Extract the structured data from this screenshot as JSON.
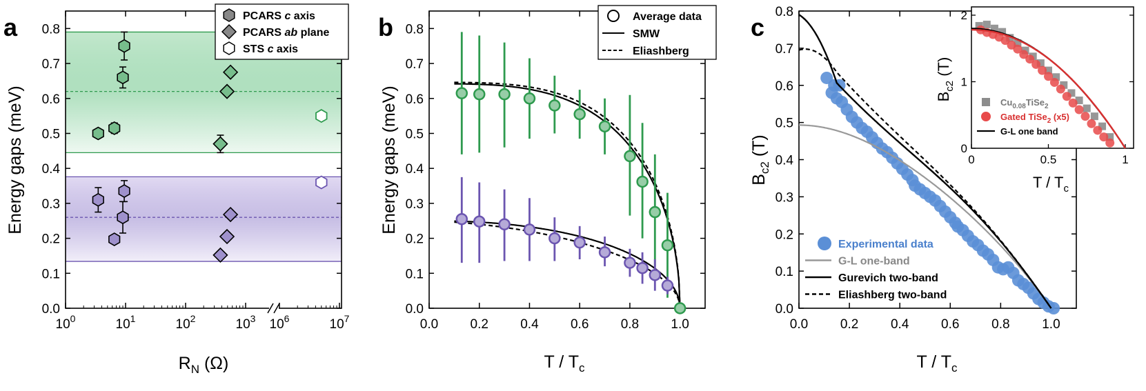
{
  "chart_data": [
    {
      "panel": "a",
      "type": "scatter",
      "xlabel_main": "R",
      "xlabel_sub": "N",
      "xlabel_unit": "(Ω)",
      "ylabel": "Energy gaps (meV)",
      "xscale": "log with axis break",
      "xticks": [
        "10",
        "10",
        "10",
        "10",
        "10",
        "10"
      ],
      "xtick_exponents": [
        "0",
        "1",
        "2",
        "3",
        "6",
        "7"
      ],
      "ylim": [
        0.0,
        0.85
      ],
      "yticks": [
        "0.0",
        "0.1",
        "0.2",
        "0.3",
        "0.4",
        "0.5",
        "0.6",
        "0.7",
        "0.8"
      ],
      "legend": [
        {
          "marker": "hexagon-filled",
          "text_parts": [
            "PCARS ",
            "c",
            " axis"
          ]
        },
        {
          "marker": "diamond-filled",
          "text_parts": [
            "PCARS ",
            "ab",
            " plane"
          ]
        },
        {
          "marker": "hexagon-open",
          "text_parts": [
            "STS ",
            "c",
            " axis"
          ]
        }
      ],
      "bands": [
        {
          "name": "green",
          "lower": 0.445,
          "upper": 0.79,
          "mean": 0.62,
          "color": "#2e9a4e"
        },
        {
          "name": "purple",
          "lower": 0.134,
          "upper": 0.376,
          "mean": 0.26,
          "color": "#6b55b0"
        }
      ],
      "series": [
        {
          "group": "green",
          "method": "PCARS c axis",
          "points": [
            {
              "x": 3.5,
              "y": 0.5,
              "err": 0.0
            },
            {
              "x": 6.5,
              "y": 0.515,
              "err": 0.015
            },
            {
              "x": 9.0,
              "y": 0.66,
              "err": 0.03
            },
            {
              "x": 9.5,
              "y": 0.75,
              "err": 0.04
            }
          ]
        },
        {
          "group": "green",
          "method": "PCARS ab plane",
          "points": [
            {
              "x": 380,
              "y": 0.47,
              "err": 0.025
            },
            {
              "x": 490,
              "y": 0.62,
              "err": 0.0
            },
            {
              "x": 560,
              "y": 0.675,
              "err": 0.0
            }
          ]
        },
        {
          "group": "green",
          "method": "STS c axis",
          "points": [
            {
              "x": 5000000,
              "y": 0.55,
              "err": 0.0
            }
          ]
        },
        {
          "group": "purple",
          "method": "PCARS c axis",
          "points": [
            {
              "x": 3.5,
              "y": 0.31,
              "err": 0.035
            },
            {
              "x": 6.5,
              "y": 0.197,
              "err": 0.0
            },
            {
              "x": 9.0,
              "y": 0.26,
              "err": 0.045
            },
            {
              "x": 9.5,
              "y": 0.335,
              "err": 0.03
            }
          ]
        },
        {
          "group": "purple",
          "method": "PCARS ab plane",
          "points": [
            {
              "x": 380,
              "y": 0.152,
              "err": 0.0
            },
            {
              "x": 490,
              "y": 0.205,
              "err": 0.0
            },
            {
              "x": 560,
              "y": 0.268,
              "err": 0.0
            }
          ]
        },
        {
          "group": "purple",
          "method": "STS c axis",
          "points": [
            {
              "x": 5000000,
              "y": 0.36,
              "err": 0.0
            }
          ]
        }
      ]
    },
    {
      "panel": "b",
      "type": "scatter",
      "xlabel": "T / T",
      "xlabel_sub": "c",
      "ylabel": "Energy gaps (meV)",
      "xlim": [
        0.0,
        1.1
      ],
      "ylim": [
        0.0,
        0.85
      ],
      "xticks": [
        "0.0",
        "0.2",
        "0.4",
        "0.6",
        "0.8",
        "1.0"
      ],
      "yticks": [
        "0.0",
        "0.1",
        "0.2",
        "0.3",
        "0.4",
        "0.5",
        "0.6",
        "0.7",
        "0.8"
      ],
      "legend": [
        {
          "marker": "circle-open",
          "text": "Average data"
        },
        {
          "marker": "line-solid",
          "text": "SMW"
        },
        {
          "marker": "line-dashed",
          "text": "Eliashberg"
        }
      ],
      "series": [
        {
          "name": "green data",
          "color": "#2e9a4e",
          "points": [
            {
              "x": 0.13,
              "y": 0.615,
              "lo": 0.44,
              "hi": 0.79
            },
            {
              "x": 0.2,
              "y": 0.612,
              "lo": 0.445,
              "hi": 0.78
            },
            {
              "x": 0.3,
              "y": 0.612,
              "lo": 0.46,
              "hi": 0.76
            },
            {
              "x": 0.4,
              "y": 0.6,
              "lo": 0.485,
              "hi": 0.715
            },
            {
              "x": 0.5,
              "y": 0.58,
              "lo": 0.5,
              "hi": 0.665
            },
            {
              "x": 0.6,
              "y": 0.555,
              "lo": 0.485,
              "hi": 0.625
            },
            {
              "x": 0.7,
              "y": 0.52,
              "lo": 0.44,
              "hi": 0.6
            },
            {
              "x": 0.8,
              "y": 0.435,
              "lo": 0.265,
              "hi": 0.61
            },
            {
              "x": 0.85,
              "y": 0.362,
              "lo": 0.2,
              "hi": 0.53
            },
            {
              "x": 0.9,
              "y": 0.275,
              "lo": 0.12,
              "hi": 0.44
            },
            {
              "x": 0.95,
              "y": 0.18,
              "lo": 0.03,
              "hi": 0.33
            },
            {
              "x": 1.0,
              "y": 0.0,
              "lo": 0.0,
              "hi": 0.0
            }
          ]
        },
        {
          "name": "purple data",
          "color": "#6b55b0",
          "points": [
            {
              "x": 0.13,
              "y": 0.255,
              "lo": 0.13,
              "hi": 0.375
            },
            {
              "x": 0.2,
              "y": 0.248,
              "lo": 0.13,
              "hi": 0.36
            },
            {
              "x": 0.3,
              "y": 0.24,
              "lo": 0.135,
              "hi": 0.34
            },
            {
              "x": 0.4,
              "y": 0.225,
              "lo": 0.135,
              "hi": 0.315
            },
            {
              "x": 0.5,
              "y": 0.2,
              "lo": 0.135,
              "hi": 0.26
            },
            {
              "x": 0.6,
              "y": 0.188,
              "lo": 0.14,
              "hi": 0.235
            },
            {
              "x": 0.7,
              "y": 0.16,
              "lo": 0.12,
              "hi": 0.205
            },
            {
              "x": 0.8,
              "y": 0.13,
              "lo": 0.09,
              "hi": 0.17
            },
            {
              "x": 0.85,
              "y": 0.115,
              "lo": 0.07,
              "hi": 0.16
            },
            {
              "x": 0.9,
              "y": 0.095,
              "lo": 0.05,
              "hi": 0.14
            },
            {
              "x": 0.95,
              "y": 0.065,
              "lo": 0.04,
              "hi": 0.09
            }
          ]
        }
      ]
    },
    {
      "panel": "c",
      "type": "scatter",
      "xlabel": "T / T",
      "xlabel_sub": "c",
      "ylabel": "B",
      "ylabel_sub": "c2",
      "ylabel_unit": "(T)",
      "xlim": [
        0.0,
        1.1
      ],
      "ylim": [
        0.0,
        0.8
      ],
      "xticks": [
        "0.0",
        "0.2",
        "0.4",
        "0.6",
        "0.8",
        "1.0"
      ],
      "yticks": [
        "0.0",
        "0.1",
        "0.2",
        "0.3",
        "0.4",
        "0.5",
        "0.6",
        "0.7",
        "0.8"
      ],
      "legend": [
        {
          "marker": "circle-filled",
          "text": "Experimental data",
          "color": "#5b8fd6"
        },
        {
          "marker": "line-gray",
          "text": "G-L one-band",
          "color": "#999999"
        },
        {
          "marker": "line-solid",
          "text": "Gurevich two-band",
          "color": "#000000"
        },
        {
          "marker": "line-dashed",
          "text": "Eliashberg two-band",
          "color": "#000000"
        }
      ],
      "series": [
        {
          "name": "Experimental data",
          "points": [
            [
              0.11,
              0.62
            ],
            [
              0.14,
              0.6
            ],
            [
              0.16,
              0.6
            ],
            [
              0.13,
              0.58
            ],
            [
              0.15,
              0.565
            ],
            [
              0.17,
              0.555
            ],
            [
              0.19,
              0.535
            ],
            [
              0.21,
              0.515
            ],
            [
              0.23,
              0.5
            ],
            [
              0.25,
              0.485
            ],
            [
              0.27,
              0.475
            ],
            [
              0.29,
              0.46
            ],
            [
              0.31,
              0.445
            ],
            [
              0.33,
              0.43
            ],
            [
              0.35,
              0.42
            ],
            [
              0.37,
              0.405
            ],
            [
              0.39,
              0.39
            ],
            [
              0.41,
              0.375
            ],
            [
              0.43,
              0.36
            ],
            [
              0.45,
              0.345
            ],
            [
              0.46,
              0.33
            ],
            [
              0.48,
              0.32
            ],
            [
              0.5,
              0.31
            ],
            [
              0.52,
              0.3
            ],
            [
              0.54,
              0.29
            ],
            [
              0.56,
              0.275
            ],
            [
              0.58,
              0.26
            ],
            [
              0.6,
              0.245
            ],
            [
              0.62,
              0.23
            ],
            [
              0.63,
              0.22
            ],
            [
              0.65,
              0.21
            ],
            [
              0.67,
              0.195
            ],
            [
              0.69,
              0.18
            ],
            [
              0.71,
              0.17
            ],
            [
              0.73,
              0.155
            ],
            [
              0.75,
              0.145
            ],
            [
              0.77,
              0.13
            ],
            [
              0.79,
              0.11
            ],
            [
              0.81,
              0.105
            ],
            [
              0.83,
              0.11
            ],
            [
              0.85,
              0.095
            ],
            [
              0.87,
              0.075
            ],
            [
              0.89,
              0.065
            ],
            [
              0.91,
              0.055
            ],
            [
              0.93,
              0.04
            ],
            [
              0.95,
              0.025
            ],
            [
              0.97,
              0.015
            ],
            [
              0.99,
              0.005
            ],
            [
              1.01,
              0.0
            ]
          ]
        }
      ],
      "inset": {
        "type": "scatter",
        "xlabel": "T / T",
        "xlabel_sub": "c",
        "ylabel": "B",
        "ylabel_sub": "c2",
        "ylabel_unit": "(T)",
        "xlim": [
          0.0,
          1.0
        ],
        "ylim": [
          0.0,
          2.0
        ],
        "xticks": [
          "0",
          "0.5",
          "1"
        ],
        "yticks": [
          "0",
          "1",
          "2"
        ],
        "legend": [
          {
            "marker": "square-gray",
            "text": "Cu",
            "sub": "0.08",
            "text2": "TiSe",
            "sub2": "2",
            "text3": "",
            "color": "#888888"
          },
          {
            "marker": "circle-red",
            "text": "Gated TiSe",
            "sub": "2",
            "text2": " (x5)",
            "sub2": "",
            "text3": "",
            "color": "#e84a4a"
          },
          {
            "marker": "line-solid",
            "text": "G-L one band",
            "sub": "",
            "text2": "",
            "sub2": "",
            "text3": "",
            "color": "#000000"
          }
        ],
        "series": [
          {
            "name": "Cu0.08TiSe2",
            "points": [
              [
                0.05,
                1.84
              ],
              [
                0.1,
                1.86
              ],
              [
                0.15,
                1.8
              ],
              [
                0.2,
                1.75
              ],
              [
                0.25,
                1.66
              ],
              [
                0.3,
                1.58
              ],
              [
                0.35,
                1.47
              ],
              [
                0.4,
                1.38
              ],
              [
                0.45,
                1.28
              ],
              [
                0.5,
                1.17
              ],
              [
                0.55,
                1.07
              ],
              [
                0.6,
                0.95
              ],
              [
                0.65,
                0.83
              ],
              [
                0.7,
                0.72
              ],
              [
                0.75,
                0.6
              ],
              [
                0.8,
                0.48
              ],
              [
                0.85,
                0.33
              ],
              [
                0.9,
                0.17
              ]
            ]
          },
          {
            "name": "Gated TiSe2 (x5)",
            "points": [
              [
                0.06,
                1.78
              ],
              [
                0.1,
                1.74
              ],
              [
                0.14,
                1.71
              ],
              [
                0.18,
                1.67
              ],
              [
                0.22,
                1.62
              ],
              [
                0.26,
                1.55
              ],
              [
                0.3,
                1.49
              ],
              [
                0.34,
                1.41
              ],
              [
                0.38,
                1.34
              ],
              [
                0.42,
                1.26
              ],
              [
                0.46,
                1.17
              ],
              [
                0.5,
                1.08
              ],
              [
                0.54,
                0.99
              ],
              [
                0.58,
                0.89
              ],
              [
                0.62,
                0.78
              ],
              [
                0.66,
                0.68
              ],
              [
                0.7,
                0.58
              ],
              [
                0.74,
                0.48
              ],
              [
                0.78,
                0.37
              ],
              [
                0.82,
                0.27
              ],
              [
                0.86,
                0.17
              ],
              [
                0.9,
                0.08
              ]
            ]
          }
        ]
      }
    }
  ],
  "panel_labels": [
    "a",
    "b",
    "c"
  ]
}
